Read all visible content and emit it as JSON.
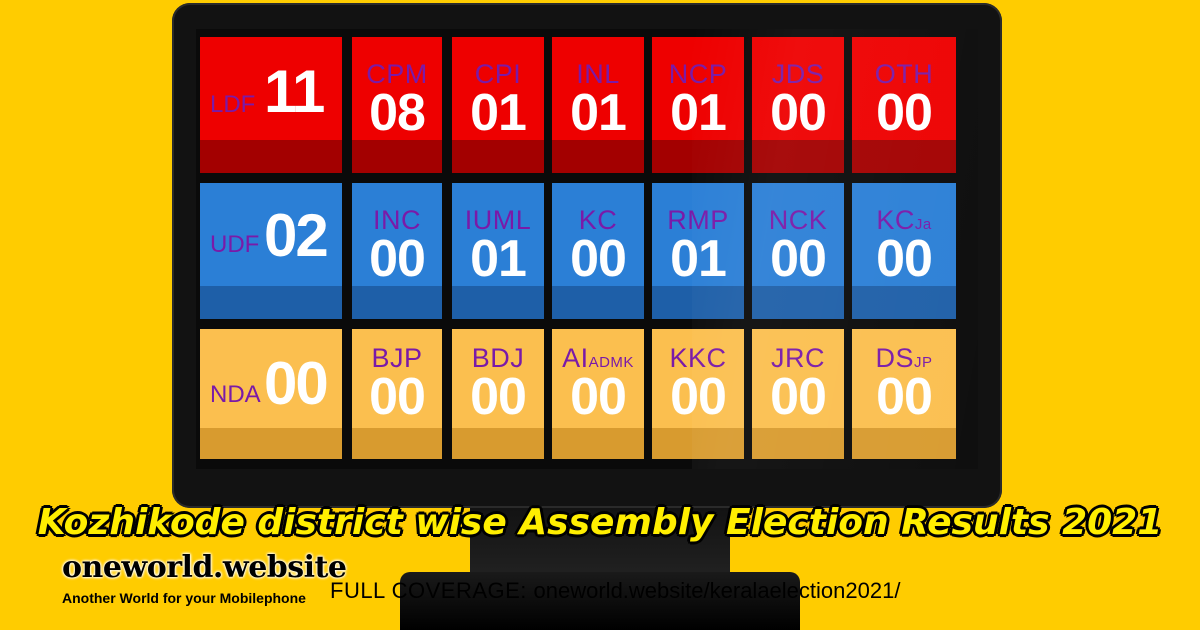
{
  "board": {
    "rows": [
      {
        "front": "LDF",
        "total": "11",
        "parties": [
          {
            "name": "CPM",
            "sub": "",
            "count": "08"
          },
          {
            "name": "CPI",
            "sub": "",
            "count": "01"
          },
          {
            "name": "INL",
            "sub": "",
            "count": "01"
          },
          {
            "name": "NCP",
            "sub": "",
            "count": "01"
          },
          {
            "name": "JDS",
            "sub": "",
            "count": "00"
          },
          {
            "name": "OTH",
            "sub": "",
            "count": "00"
          }
        ]
      },
      {
        "front": "UDF",
        "total": "02",
        "parties": [
          {
            "name": "INC",
            "sub": "",
            "count": "00"
          },
          {
            "name": "IUML",
            "sub": "",
            "count": "01"
          },
          {
            "name": "KC",
            "sub": "",
            "count": "00"
          },
          {
            "name": "RMP",
            "sub": "",
            "count": "01"
          },
          {
            "name": "NCK",
            "sub": "",
            "count": "00"
          },
          {
            "name": "KC",
            "sub": "Ja",
            "count": "00"
          }
        ]
      },
      {
        "front": "NDA",
        "total": "00",
        "parties": [
          {
            "name": "BJP",
            "sub": "",
            "count": "00"
          },
          {
            "name": "BDJ",
            "sub": "",
            "count": "00"
          },
          {
            "name": "AI",
            "sub": "ADMK",
            "count": "00"
          },
          {
            "name": "KKC",
            "sub": "",
            "count": "00"
          },
          {
            "name": "JRC",
            "sub": "",
            "count": "00"
          },
          {
            "name": "DS",
            "sub": "JP",
            "count": "00"
          }
        ]
      }
    ]
  },
  "title": "Kozhikode district wise Assembly Election Results 2021",
  "brand": {
    "name": "oneworld.website",
    "tagline": "Another World for your Mobilephone"
  },
  "coverage": {
    "label": "FULL COVERAGE:",
    "url": "oneworld.website/keralaelection2021/"
  },
  "colors": {
    "background": "#ffcc00",
    "ldf": "#ee0000",
    "udf": "#2b7fd6",
    "nda": "#fbbf4f",
    "party_text": "#7a1aa8",
    "number_text": "#ffffff",
    "title_text": "#ffee00"
  }
}
